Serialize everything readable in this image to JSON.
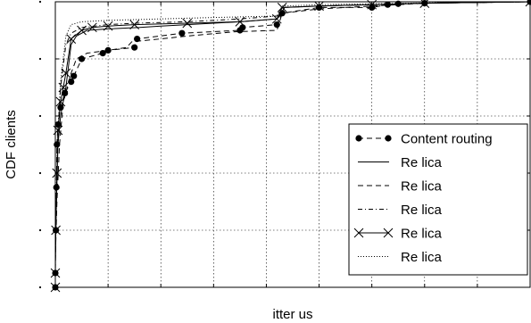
{
  "chart_data": {
    "type": "line",
    "title": "",
    "xlabel": "itter us",
    "ylabel": "CDF clients",
    "grid": true,
    "legend_position": "bottom-right",
    "xlim": [
      0,
      9
    ],
    "ylim": [
      0,
      1
    ],
    "series": [
      {
        "name": "Content routing",
        "style": "dashed-dot-markers",
        "x": [
          0.0,
          0.0,
          0.01,
          0.02,
          0.03,
          0.05,
          0.1,
          0.18,
          0.3,
          0.35,
          0.5,
          0.9,
          1.0,
          1.5,
          1.55,
          2.4,
          3.5,
          3.55,
          4.2,
          4.3,
          5.0,
          6.0,
          6.3,
          6.5,
          7.0,
          9.0
        ],
        "y": [
          0.0,
          0.05,
          0.2,
          0.35,
          0.5,
          0.57,
          0.63,
          0.68,
          0.72,
          0.74,
          0.8,
          0.82,
          0.83,
          0.84,
          0.87,
          0.89,
          0.9,
          0.91,
          0.92,
          0.96,
          0.98,
          0.98,
          0.99,
          0.993,
          0.995,
          1.0
        ]
      },
      {
        "name": "Re lica",
        "style": "solid",
        "x": [
          0.0,
          0.0,
          0.02,
          0.05,
          0.1,
          0.2,
          0.3,
          0.4,
          0.6,
          1.0,
          1.6,
          2.0,
          2.5,
          3.5,
          4.2,
          4.35,
          5.0,
          6.0,
          7.0,
          9.0
        ],
        "y": [
          0.0,
          0.1,
          0.3,
          0.5,
          0.6,
          0.7,
          0.85,
          0.88,
          0.9,
          0.905,
          0.91,
          0.915,
          0.92,
          0.93,
          0.94,
          0.98,
          0.985,
          0.99,
          0.995,
          1.0
        ]
      },
      {
        "name": "Re lica",
        "style": "dashed",
        "x": [
          0.0,
          0.0,
          0.03,
          0.08,
          0.15,
          0.3,
          0.4,
          0.6,
          1.0,
          1.35,
          1.45,
          2.0,
          2.5,
          3.4,
          4.2,
          4.3,
          5.0,
          6.0,
          7.0,
          9.0
        ],
        "y": [
          0.0,
          0.1,
          0.3,
          0.5,
          0.65,
          0.75,
          0.8,
          0.82,
          0.83,
          0.84,
          0.86,
          0.87,
          0.88,
          0.895,
          0.9,
          0.96,
          0.975,
          0.985,
          0.995,
          1.0
        ]
      },
      {
        "name": "Re lica",
        "style": "dash-dot",
        "x": [
          0.0,
          0.0,
          0.02,
          0.05,
          0.1,
          0.2,
          0.3,
          0.5,
          1.0,
          1.5,
          2.5,
          3.5,
          4.2,
          4.3,
          5.0,
          6.0,
          7.0,
          9.0
        ],
        "y": [
          0.0,
          0.1,
          0.3,
          0.55,
          0.7,
          0.85,
          0.89,
          0.91,
          0.92,
          0.925,
          0.93,
          0.94,
          0.95,
          0.98,
          0.985,
          0.99,
          0.995,
          1.0
        ]
      },
      {
        "name": "Re lica",
        "style": "solid-x-markers",
        "x": [
          0.0,
          0.0,
          0.01,
          0.03,
          0.05,
          0.1,
          0.15,
          0.2,
          0.3,
          0.5,
          0.7,
          1.0,
          1.5,
          2.5,
          3.5,
          4.2,
          4.3,
          5.0,
          6.0,
          7.0,
          9.0
        ],
        "y": [
          0.0,
          0.05,
          0.2,
          0.4,
          0.55,
          0.65,
          0.7,
          0.75,
          0.87,
          0.9,
          0.91,
          0.915,
          0.92,
          0.925,
          0.93,
          0.94,
          0.98,
          0.985,
          0.99,
          0.995,
          1.0
        ]
      },
      {
        "name": "Re lica",
        "style": "dotted",
        "x": [
          0.0,
          0.0,
          0.02,
          0.05,
          0.1,
          0.2,
          0.3,
          0.5,
          1.0,
          2.0,
          3.0,
          4.2,
          4.3,
          5.0,
          6.0,
          7.0,
          9.0
        ],
        "y": [
          0.0,
          0.1,
          0.35,
          0.55,
          0.72,
          0.88,
          0.92,
          0.93,
          0.935,
          0.94,
          0.945,
          0.95,
          0.985,
          0.99,
          0.993,
          0.996,
          1.0
        ]
      }
    ]
  }
}
